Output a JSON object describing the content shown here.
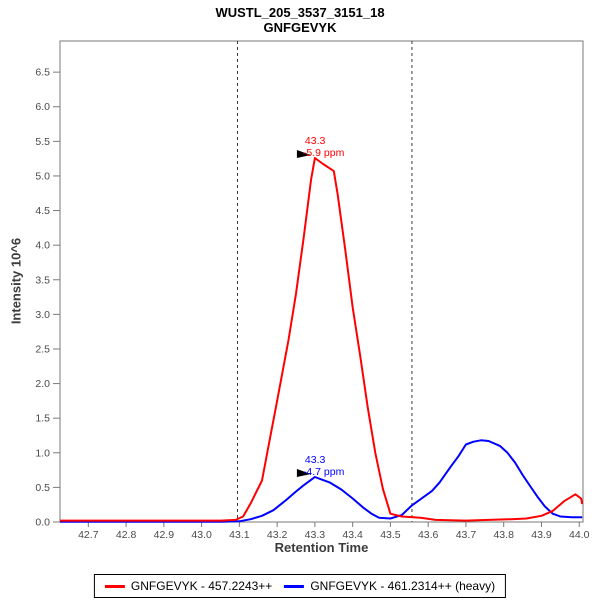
{
  "title": {
    "line1": "WUSTL_205_3537_3151_18",
    "line2": "GNFGEVYK"
  },
  "axes": {
    "x_label": "Retention Time",
    "y_label": "Intensity 10^6"
  },
  "legend": {
    "items": [
      {
        "label": "GNFGEVYK - 457.2243++",
        "color": "#ff0000"
      },
      {
        "label": "GNFGEVYK - 461.2314++ (heavy)",
        "color": "#0000ff"
      }
    ]
  },
  "colors": {
    "axis": "#7a7a7a",
    "tick_label": "#4a4a4a",
    "boundary": "#3a3a3a",
    "annotation_arrow": "#000000"
  },
  "chart_data": {
    "type": "line",
    "title": "WUSTL_205_3537_3151_18 GNFGEVYK",
    "xlabel": "Retention Time",
    "ylabel": "Intensity 10^6",
    "xlim": [
      42.625,
      44.01
    ],
    "ylim": [
      0,
      6.95
    ],
    "x_ticks": [
      42.7,
      42.8,
      42.9,
      43.0,
      43.1,
      43.2,
      43.3,
      43.4,
      43.5,
      43.6,
      43.7,
      43.8,
      43.9,
      44.0
    ],
    "y_ticks": [
      0.0,
      0.5,
      1.0,
      1.5,
      2.0,
      2.5,
      3.0,
      3.5,
      4.0,
      4.5,
      5.0,
      5.5,
      6.0,
      6.5
    ],
    "grid": false,
    "legend_position": "bottom",
    "peak_boundaries": [
      43.095,
      43.557
    ],
    "series": [
      {
        "name": "GNFGEVYK - 461.2314++ (heavy)",
        "color": "#0000ff",
        "points": [
          [
            42.625,
            0.005
          ],
          [
            42.8,
            0.005
          ],
          [
            42.95,
            0.005
          ],
          [
            43.05,
            0.005
          ],
          [
            43.1,
            0.01
          ],
          [
            43.13,
            0.04
          ],
          [
            43.16,
            0.09
          ],
          [
            43.19,
            0.17
          ],
          [
            43.22,
            0.3
          ],
          [
            43.25,
            0.44
          ],
          [
            43.27,
            0.53
          ],
          [
            43.29,
            0.61
          ],
          [
            43.3,
            0.65
          ],
          [
            43.32,
            0.61
          ],
          [
            43.34,
            0.57
          ],
          [
            43.37,
            0.47
          ],
          [
            43.4,
            0.34
          ],
          [
            43.43,
            0.2
          ],
          [
            43.45,
            0.12
          ],
          [
            43.47,
            0.06
          ],
          [
            43.5,
            0.05
          ],
          [
            43.53,
            0.1
          ],
          [
            43.557,
            0.24
          ],
          [
            43.58,
            0.33
          ],
          [
            43.61,
            0.45
          ],
          [
            43.63,
            0.57
          ],
          [
            43.66,
            0.8
          ],
          [
            43.68,
            0.95
          ],
          [
            43.7,
            1.12
          ],
          [
            43.72,
            1.16
          ],
          [
            43.74,
            1.18
          ],
          [
            43.76,
            1.17
          ],
          [
            43.79,
            1.1
          ],
          [
            43.81,
            1.0
          ],
          [
            43.83,
            0.86
          ],
          [
            43.85,
            0.68
          ],
          [
            43.87,
            0.52
          ],
          [
            43.89,
            0.36
          ],
          [
            43.91,
            0.22
          ],
          [
            43.93,
            0.12
          ],
          [
            43.95,
            0.08
          ],
          [
            43.98,
            0.07
          ],
          [
            44.008,
            0.07
          ]
        ]
      },
      {
        "name": "GNFGEVYK - 457.2243++",
        "color": "#ff0000",
        "points": [
          [
            42.625,
            0.02
          ],
          [
            42.75,
            0.02
          ],
          [
            42.9,
            0.02
          ],
          [
            43.0,
            0.02
          ],
          [
            43.05,
            0.02
          ],
          [
            43.09,
            0.03
          ],
          [
            43.11,
            0.08
          ],
          [
            43.13,
            0.27
          ],
          [
            43.16,
            0.6
          ],
          [
            43.18,
            1.18
          ],
          [
            43.2,
            1.75
          ],
          [
            43.23,
            2.63
          ],
          [
            43.25,
            3.3
          ],
          [
            43.27,
            4.1
          ],
          [
            43.29,
            4.95
          ],
          [
            43.3,
            5.26
          ],
          [
            43.32,
            5.18
          ],
          [
            43.35,
            5.07
          ],
          [
            43.36,
            4.75
          ],
          [
            43.38,
            3.95
          ],
          [
            43.4,
            3.1
          ],
          [
            43.42,
            2.4
          ],
          [
            43.44,
            1.65
          ],
          [
            43.46,
            1.0
          ],
          [
            43.48,
            0.48
          ],
          [
            43.5,
            0.12
          ],
          [
            43.53,
            0.08
          ],
          [
            43.56,
            0.07
          ],
          [
            43.58,
            0.06
          ],
          [
            43.62,
            0.03
          ],
          [
            43.7,
            0.02
          ],
          [
            43.76,
            0.03
          ],
          [
            43.82,
            0.04
          ],
          [
            43.86,
            0.05
          ],
          [
            43.9,
            0.09
          ],
          [
            43.93,
            0.16
          ],
          [
            43.96,
            0.3
          ],
          [
            43.99,
            0.4
          ],
          [
            44.005,
            0.34
          ],
          [
            44.008,
            0.26
          ]
        ]
      }
    ],
    "annotations": [
      {
        "series": "GNFGEVYK - 457.2243++",
        "x": 43.3,
        "y": 5.26,
        "lines": [
          "43.3",
          "-5.9 ppm"
        ],
        "color": "#ff0000"
      },
      {
        "series": "GNFGEVYK - 461.2314++ (heavy)",
        "x": 43.3,
        "y": 0.65,
        "lines": [
          "43.3",
          "-4.7 ppm"
        ],
        "color": "#0000ff"
      }
    ]
  }
}
